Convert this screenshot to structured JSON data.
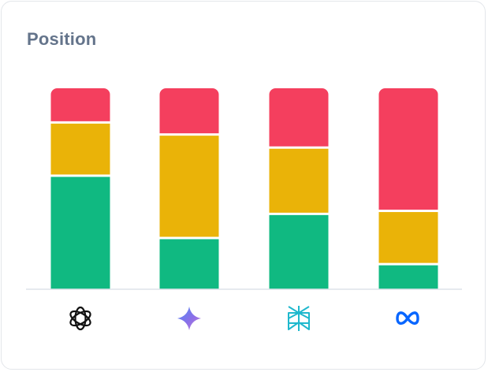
{
  "card": {
    "title": "Position"
  },
  "chart_data": {
    "type": "bar",
    "stacked": true,
    "normalized": true,
    "categories": [
      "openai-logo-icon",
      "gemini-logo-icon",
      "perplexity-logo-icon",
      "meta-logo-icon"
    ],
    "series": [
      {
        "color": "#10b981",
        "values": [
          56.5,
          25.5,
          37.5,
          12.5
        ]
      },
      {
        "color": "#eab308",
        "values": [
          26.5,
          51.5,
          33.0,
          26.5
        ]
      },
      {
        "color": "#f43f5e",
        "values": [
          17.0,
          23.0,
          29.5,
          61.0
        ]
      }
    ],
    "ylim": [
      0,
      100
    ],
    "grid": false,
    "legend": "none"
  }
}
